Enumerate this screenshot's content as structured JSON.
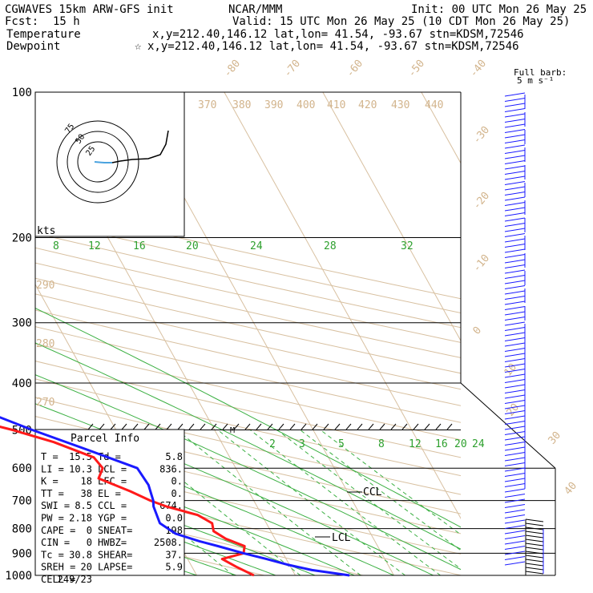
{
  "header": {
    "model": "CGWAVES 15km ARW-GFS init",
    "fcst_label": "Fcst:",
    "fcst_value": "15 h",
    "org": "NCAR/MMM",
    "init": "Init: 00 UTC Mon 26 May 25",
    "valid": "Valid: 15 UTC Mon 26 May 25 (10 CDT Mon 26 May 25)"
  },
  "legend": [
    {
      "name": "Temperature",
      "location": "x,y=212.40,146.12   lat,lon= 41.54, -93.67   stn=KDSM,72546",
      "color": "#1a1aff",
      "symbol": ""
    },
    {
      "name": "Dewpoint",
      "location": "x,y=212.40,146.12   lat,lon= 41.54, -93.67   stn=KDSM,72546",
      "color": "#ff1a1a",
      "symbol": "☆"
    }
  ],
  "barb_legend": {
    "line1": "Full barb:",
    "line2": "5 m s⁻¹"
  },
  "hodograph": {
    "units": "kts",
    "rings": [
      "75",
      "50",
      "25"
    ]
  },
  "parcel_info": {
    "title": "Parcel Info",
    "rows": [
      [
        "T  =",
        "15.5",
        "Td =",
        "5.8"
      ],
      [
        "LI =",
        "10.3",
        "LCL =",
        "836."
      ],
      [
        "K  =",
        "18",
        "LFC =",
        "0."
      ],
      [
        "TT =",
        "38",
        "EL  =",
        "0."
      ],
      [
        "SWI =",
        "8.5",
        "CCL =",
        "674."
      ],
      [
        "PW =",
        "2.18",
        "YGP =",
        "0.0"
      ],
      [
        "CAPE =",
        "0",
        "SNEAT=",
        "198"
      ],
      [
        "CIN =",
        "0",
        "HWBZ=",
        "2508."
      ],
      [
        "Tc =",
        "30.8",
        "SHEAR=",
        "37."
      ],
      [
        "SREH =",
        "20",
        "LAPSE=",
        "5.9"
      ],
      [
        "CELL =",
        "249/23",
        "",
        ""
      ]
    ]
  },
  "annotations": {
    "ccl": "CCL",
    "lcl": "LCL",
    "m": "M"
  },
  "chart_data": {
    "type": "line",
    "title": "",
    "ylabel": "",
    "xlabel": "",
    "y_scale": "log-pressure (reversed)",
    "pressure_ticks": [
      "100",
      "200",
      "300",
      "400",
      "500",
      "600",
      "700",
      "800",
      "900",
      "1000"
    ],
    "isotherm_labels_top": [
      "-80",
      "-70",
      "-60",
      "-50",
      "-40"
    ],
    "isotherm_labels_right": [
      "-30",
      "-20",
      "-10",
      "0",
      "10",
      "20",
      "30",
      "40"
    ],
    "theta_labels_top": [
      "370",
      "380",
      "390",
      "400",
      "410",
      "420",
      "430",
      "440"
    ],
    "theta_labels_left": [
      "290",
      "280",
      "270"
    ],
    "mixing_ratio_labels_upper": [
      "8",
      "12",
      "16",
      "20",
      "24",
      "28",
      "32"
    ],
    "mixing_ratio_labels_lower": [
      "2",
      "3",
      "5",
      "8",
      "12",
      "16",
      "20",
      "24"
    ],
    "series": [
      {
        "name": "Temperature",
        "color": "#1a1aff",
        "points": [
          [
            1000,
            15.5
          ],
          [
            975,
            12.0
          ],
          [
            950,
            9.8
          ],
          [
            925,
            8.0
          ],
          [
            900,
            6.0
          ],
          [
            870,
            3.8
          ],
          [
            850,
            2.2
          ],
          [
            820,
            0.2
          ],
          [
            780,
            -0.8
          ],
          [
            720,
            -0.5
          ],
          [
            700,
            -0.2
          ],
          [
            650,
            0.2
          ],
          [
            600,
            0.0
          ],
          [
            550,
            -4.0
          ],
          [
            500,
            -8.5
          ],
          [
            450,
            -13.0
          ],
          [
            400,
            -18.5
          ],
          [
            350,
            -25.5
          ],
          [
            300,
            -33.0
          ],
          [
            250,
            -42.0
          ],
          [
            200,
            -54.0
          ],
          [
            175,
            -57.5
          ],
          [
            150,
            -57.0
          ],
          [
            140,
            -54.0
          ],
          [
            120,
            -55.5
          ],
          [
            100,
            -58.0
          ]
        ]
      },
      {
        "name": "Dewpoint",
        "color": "#ff1a1a",
        "points": [
          [
            1000,
            5.8
          ],
          [
            960,
            4.5
          ],
          [
            925,
            3.5
          ],
          [
            900,
            6.0
          ],
          [
            870,
            6.5
          ],
          [
            840,
            5.0
          ],
          [
            810,
            4.2
          ],
          [
            780,
            4.5
          ],
          [
            750,
            3.5
          ],
          [
            720,
            0.8
          ],
          [
            700,
            -0.5
          ],
          [
            670,
            -2.0
          ],
          [
            630,
            -4.5
          ],
          [
            600,
            -3.5
          ],
          [
            570,
            -3.8
          ],
          [
            530,
            -7.0
          ],
          [
            500,
            -10.5
          ],
          [
            460,
            -16.5
          ],
          [
            420,
            -22.0
          ],
          [
            380,
            -28.5
          ],
          [
            350,
            -42.0
          ],
          [
            330,
            -46.0
          ],
          [
            310,
            -45.0
          ],
          [
            290,
            -48.0
          ],
          [
            270,
            -52.5
          ],
          [
            250,
            -57.5
          ],
          [
            220,
            -62.0
          ],
          [
            200,
            -66.5
          ],
          [
            175,
            -73.0
          ],
          [
            150,
            -76.0
          ],
          [
            140,
            -75.5
          ],
          [
            125,
            -80.0
          ],
          [
            110,
            -80.0
          ],
          [
            100,
            -79.5
          ]
        ]
      }
    ],
    "legend_position": "top-left"
  }
}
